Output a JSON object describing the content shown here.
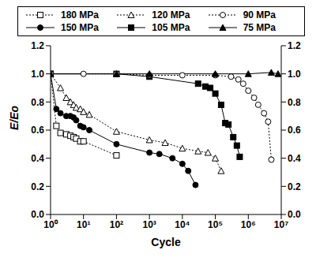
{
  "chart_data": {
    "type": "line",
    "x_label": "Cycle",
    "y_label": "E/Eo",
    "log": "x",
    "legend": "top",
    "grid": false,
    "xlim": [
      1,
      10000000
    ],
    "xticks": [
      {
        "value": 1,
        "label": "10⁰"
      },
      {
        "value": 10,
        "label": "10¹"
      },
      {
        "value": 100,
        "label": "10²"
      },
      {
        "value": 1000,
        "label": "10³"
      },
      {
        "value": 10000,
        "label": "10⁴"
      },
      {
        "value": 100000,
        "label": "10⁵"
      },
      {
        "value": 1000000,
        "label": "10⁶"
      },
      {
        "value": 10000000,
        "label": "10⁷"
      }
    ],
    "ylim": [
      0,
      1.2
    ],
    "yticks": [
      0,
      0.2,
      0.4,
      0.6,
      0.8,
      1,
      1.2
    ],
    "y2lim": [
      0,
      1.2
    ],
    "y2ticks": [
      0,
      0.2,
      0.4,
      0.6,
      0.8,
      1,
      1.2
    ],
    "series": [
      {
        "name": "180 MPa",
        "color": "#000000",
        "marker": "open_square",
        "line_style": "dotted",
        "x": [
          1,
          1.5,
          2,
          3,
          4,
          5,
          6,
          8,
          10,
          100
        ],
        "values": [
          1.0,
          0.63,
          0.58,
          0.57,
          0.56,
          0.55,
          0.54,
          0.52,
          0.52,
          0.42
        ]
      },
      {
        "name": "150 MPa",
        "color": "#000000",
        "marker": "filled_circle",
        "line_style": "solid",
        "x": [
          1,
          1.5,
          2,
          3,
          4,
          5,
          6,
          8,
          10,
          15,
          100,
          1000,
          2000,
          5000,
          10000,
          15000,
          25000
        ],
        "values": [
          1.0,
          0.75,
          0.72,
          0.7,
          0.7,
          0.69,
          0.67,
          0.63,
          0.62,
          0.6,
          0.5,
          0.44,
          0.43,
          0.4,
          0.36,
          0.31,
          0.21
        ]
      },
      {
        "name": "120 MPa",
        "color": "#000000",
        "marker": "open_triangle",
        "line_style": "dotted",
        "x": [
          1,
          2,
          3,
          4,
          5,
          6,
          8,
          10,
          15,
          100,
          1000,
          3000,
          10000,
          30000,
          60000,
          100000,
          150000
        ],
        "values": [
          1.0,
          0.9,
          0.83,
          0.8,
          0.78,
          0.76,
          0.75,
          0.73,
          0.71,
          0.59,
          0.53,
          0.51,
          0.47,
          0.45,
          0.44,
          0.4,
          0.31
        ]
      },
      {
        "name": "105 MPa",
        "color": "#000000",
        "marker": "filled_square",
        "line_style": "solid",
        "x": [
          1,
          100,
          1000,
          30000,
          50000,
          70000,
          100000,
          150000,
          200000,
          250000,
          350000,
          450000,
          550000
        ],
        "values": [
          1.0,
          1.0,
          0.98,
          0.93,
          0.91,
          0.9,
          0.86,
          0.78,
          0.65,
          0.64,
          0.55,
          0.49,
          0.41
        ]
      },
      {
        "name": "90 MPa",
        "color": "#000000",
        "marker": "open_circle",
        "line_style": "dotted",
        "x": [
          1,
          10,
          100,
          1000,
          10000,
          100000,
          300000,
          500000,
          700000,
          1000000,
          1500000,
          2000000,
          3000000,
          4000000,
          5000000
        ],
        "values": [
          1.0,
          1.0,
          1.0,
          0.99,
          0.99,
          0.99,
          0.98,
          0.96,
          0.93,
          0.88,
          0.83,
          0.78,
          0.72,
          0.66,
          0.39
        ]
      },
      {
        "name": "75 MPa",
        "color": "#000000",
        "marker": "filled_triangle",
        "line_style": "solid",
        "x": [
          1,
          100,
          1000,
          100000,
          1000000,
          5000000,
          8000000
        ],
        "values": [
          1.0,
          1.0,
          1.0,
          1.0,
          1.0,
          1.01,
          1.0
        ]
      }
    ]
  }
}
